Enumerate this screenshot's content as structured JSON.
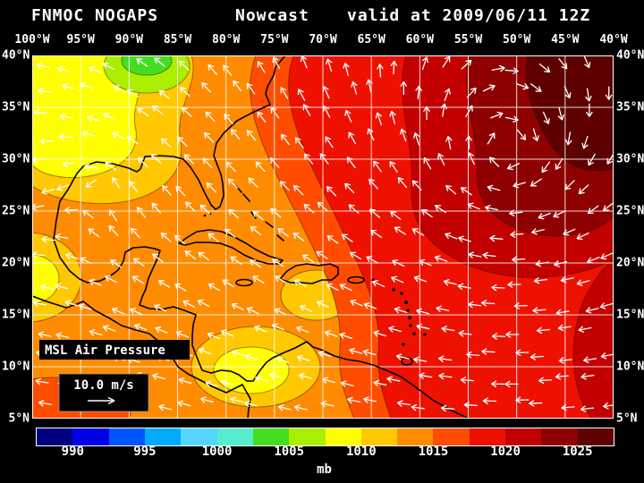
{
  "header": {
    "model": "FNMOC NOGAPS",
    "product": "Nowcast",
    "valid_text": "valid at 2009/06/11 12Z"
  },
  "map": {
    "lon_labels": [
      "100°W",
      "95°W",
      "90°W",
      "85°W",
      "80°W",
      "75°W",
      "70°W",
      "65°W",
      "60°W",
      "55°W",
      "50°W",
      "45°W",
      "40°W"
    ],
    "lat_labels": [
      "40°N",
      "35°N",
      "30°N",
      "25°N",
      "20°N",
      "15°N",
      "10°N",
      "5°N"
    ],
    "field_label": "MSL Air Pressure",
    "wind_legend_label": "10.0 m/s"
  },
  "colorbar": {
    "unit": "mb",
    "tick_labels": [
      "990",
      "995",
      "1000",
      "1005",
      "1010",
      "1015",
      "1020",
      "1025"
    ],
    "segment_colors": [
      "#000080",
      "#0000E6",
      "#0055FF",
      "#00AAFF",
      "#55D4FF",
      "#55EECC",
      "#44DD22",
      "#AAEE00",
      "#FFFF00",
      "#FFC800",
      "#FF8C00",
      "#FF4D00",
      "#EE1100",
      "#C20000",
      "#8F0000",
      "#5E0000"
    ]
  },
  "chart_data": {
    "type": "heatmap",
    "title": "FNMOC NOGAPS Nowcast valid at 2009/06/11 12Z",
    "field": "MSL Air Pressure",
    "units": "mb",
    "x_tick_labels": [
      "100°W",
      "95°W",
      "90°W",
      "85°W",
      "80°W",
      "75°W",
      "70°W",
      "65°W",
      "60°W",
      "55°W",
      "50°W",
      "45°W",
      "40°W"
    ],
    "y_tick_labels": [
      "40°N",
      "35°N",
      "30°N",
      "25°N",
      "20°N",
      "15°N",
      "10°N",
      "5°N"
    ],
    "colorbar_ticks": [
      990,
      995,
      1000,
      1005,
      1010,
      1015,
      1020,
      1025
    ],
    "wind_reference": "10.0 m/s",
    "pattern_summary": "Pressure increases west-to-east: ~1005-1010 mb (yellow/green) over SW US, Mexico and Central America, ~1010-1015 mb (orange) over Gulf of Mexico and western Caribbean, ~1015-1020 mb (red) over central Atlantic, >1020-1025 mb (dark red) subtropical high in NE corner; white wind vectors show anticyclonic flow around the Atlantic high with easterly trades across the southern Caribbean."
  }
}
